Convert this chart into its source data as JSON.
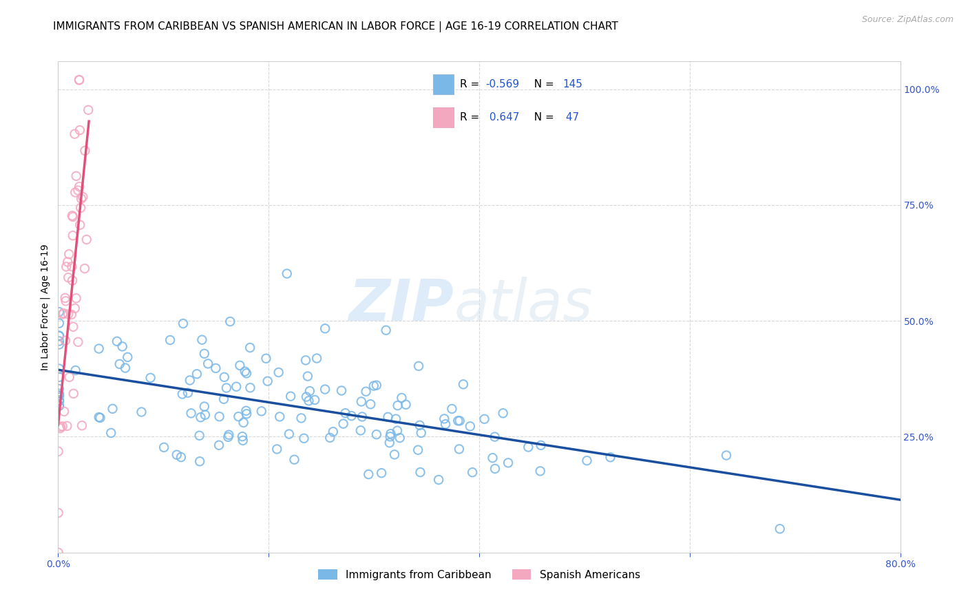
{
  "title": "IMMIGRANTS FROM CARIBBEAN VS SPANISH AMERICAN IN LABOR FORCE | AGE 16-19 CORRELATION CHART",
  "source": "Source: ZipAtlas.com",
  "ylabel_left": "In Labor Force | Age 16-19",
  "legend_label1": "Immigrants from Caribbean",
  "legend_label2": "Spanish Americans",
  "r1": -0.569,
  "n1": 145,
  "r2": 0.647,
  "n2": 47,
  "color1": "#7ab8e8",
  "color2": "#f4a8c0",
  "line_color1": "#1a4fa0",
  "line_color2": "#e0507a",
  "background_color": "#ffffff",
  "grid_color": "#d8d8d8",
  "x_min": 0.0,
  "x_max": 0.8,
  "y_min": 0.0,
  "y_max": 1.06,
  "watermark_zip": "ZIP",
  "watermark_atlas": "atlas",
  "title_fontsize": 11,
  "axis_label_fontsize": 10,
  "tick_fontsize": 10,
  "source_fontsize": 9
}
